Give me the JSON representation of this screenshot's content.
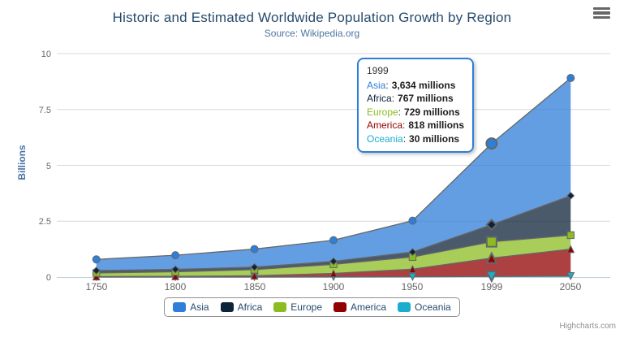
{
  "chart": {
    "title": "Historic and Estimated Worldwide Population Growth by Region",
    "subtitle": "Source: Wikipedia.org",
    "credits": "Highcharts.com",
    "export_menu_icon": "hamburger-icon"
  },
  "chart_data": {
    "type": "area",
    "stacking": "normal",
    "title": "Historic and Estimated Worldwide Population Growth by Region",
    "subtitle": "Source: Wikipedia.org",
    "categories": [
      "1750",
      "1800",
      "1850",
      "1900",
      "1950",
      "1999",
      "2050"
    ],
    "xlabel": "",
    "ylabel": "Billions",
    "unit": "millions",
    "ylim": [
      0,
      10
    ],
    "yticks": [
      "0",
      "2.5",
      "5",
      "7.5",
      "10"
    ],
    "grid": true,
    "legend_position": "bottom",
    "line_color": "#666666",
    "fill_opacity": 0.75,
    "series": [
      {
        "name": "Asia",
        "color": "#2f7ed8",
        "marker": "circle",
        "values": [
          502,
          635,
          809,
          947,
          1402,
          3634,
          5268
        ]
      },
      {
        "name": "Africa",
        "color": "#0d233a",
        "marker": "diamond",
        "values": [
          106,
          107,
          111,
          133,
          221,
          767,
          1766
        ]
      },
      {
        "name": "Europe",
        "color": "#8bbc21",
        "marker": "square",
        "values": [
          163,
          203,
          276,
          408,
          547,
          729,
          628
        ]
      },
      {
        "name": "America",
        "color": "#910000",
        "marker": "triangle",
        "values": [
          18,
          31,
          54,
          156,
          339,
          818,
          1201
        ]
      },
      {
        "name": "Oceania",
        "color": "#1aadce",
        "marker": "triangle-down",
        "values": [
          2,
          2,
          2,
          6,
          13,
          30,
          46
        ]
      }
    ]
  },
  "tooltip": {
    "header": "1999",
    "hover_index": 5,
    "rows": [
      {
        "name": "Asia",
        "value": "3,634 millions"
      },
      {
        "name": "Africa",
        "value": "767 millions"
      },
      {
        "name": "Europe",
        "value": "729 millions"
      },
      {
        "name": "America",
        "value": "818 millions"
      },
      {
        "name": "Oceania",
        "value": "30 millions"
      }
    ]
  },
  "colors": {
    "title": "#274b6d",
    "subtitle": "#4d759e",
    "axis_label": "#666666",
    "axis_title": "#4572a7",
    "grid": "#d8d8d8",
    "axis_line": "#c0d0e0",
    "tooltip_border": "#2f7ed8",
    "legend_border": "#909090",
    "credits": "#909090"
  }
}
